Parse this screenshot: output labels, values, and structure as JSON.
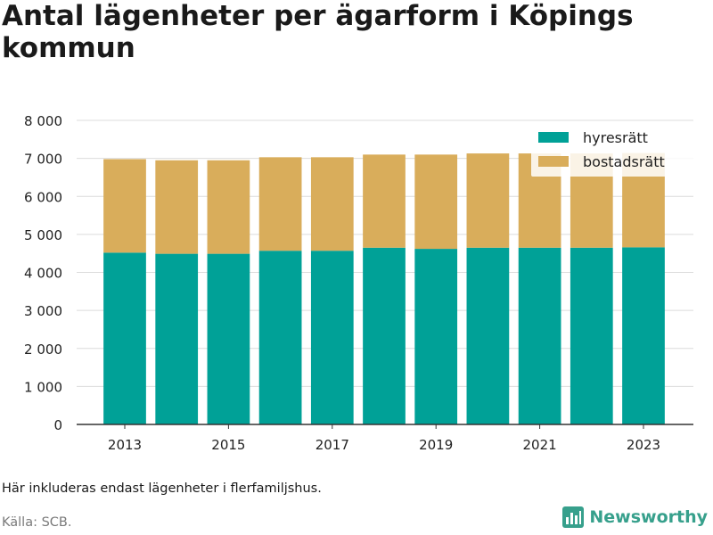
{
  "colors": {
    "hyresratt": "#00a197",
    "bostadsratt": "#d9ad5b",
    "grid": "#dcdcdc",
    "axis": "#333333",
    "brand": "#37a08c"
  },
  "footer": {
    "note": "Här inkluderas endast lägenheter i flerfamiljshus.",
    "source": "Källa: SCB.",
    "brand": "Newsworthy",
    "brand_icon": "bar-chart-logo-icon"
  },
  "chart_data": {
    "type": "bar",
    "stacked": true,
    "title": "Antal lägenheter per ägarform i Köpings kommun",
    "xlabel": "",
    "ylabel": "",
    "categories": [
      "2013",
      "2014",
      "2015",
      "2016",
      "2017",
      "2018",
      "2019",
      "2020",
      "2021",
      "2022",
      "2023"
    ],
    "x_tick_labels": [
      "2013",
      "2015",
      "2017",
      "2019",
      "2021",
      "2023"
    ],
    "y_tick_labels": [
      "0",
      "1 000",
      "2 000",
      "3 000",
      "4 000",
      "5 000",
      "6 000",
      "7 000",
      "8 000"
    ],
    "ylim": [
      0,
      8000
    ],
    "grid": true,
    "legend_position": "top-right",
    "series": [
      {
        "name": "hyresrätt",
        "values": [
          4520,
          4490,
          4490,
          4570,
          4570,
          4650,
          4620,
          4650,
          4650,
          4650,
          4660
        ]
      },
      {
        "name": "bostadsrätt",
        "values": [
          2460,
          2460,
          2460,
          2460,
          2460,
          2450,
          2480,
          2480,
          2480,
          2480,
          2480
        ]
      }
    ]
  }
}
